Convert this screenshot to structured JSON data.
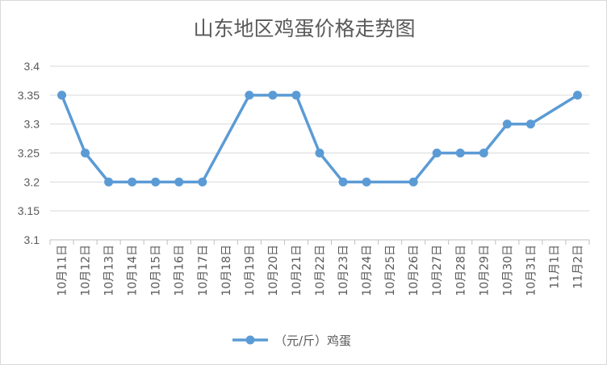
{
  "chart_data": {
    "type": "line",
    "title": "山东地区鸡蛋价格走势图",
    "xlabel": "",
    "ylabel": "",
    "categories": [
      "10月11日",
      "10月12日",
      "10月13日",
      "10月14日",
      "10月15日",
      "10月16日",
      "10月17日",
      "10月18日",
      "10月19日",
      "10月20日",
      "10月21日",
      "10月22日",
      "10月23日",
      "10月24日",
      "10月25日",
      "10月26日",
      "10月27日",
      "10月28日",
      "10月29日",
      "10月30日",
      "10月31日",
      "11月1日",
      "11月2日"
    ],
    "series": [
      {
        "name": "（元/斤）鸡蛋",
        "color": "#5b9bd5",
        "values": [
          3.35,
          3.25,
          3.2,
          3.2,
          3.2,
          3.2,
          3.2,
          null,
          3.35,
          3.35,
          3.35,
          3.25,
          3.2,
          3.2,
          null,
          3.2,
          3.25,
          3.25,
          3.25,
          3.3,
          3.3,
          null,
          3.35
        ]
      }
    ],
    "ylim": [
      3.1,
      3.4
    ],
    "yticks": [
      "3.1",
      "3.15",
      "3.2",
      "3.25",
      "3.3",
      "3.35",
      "3.4"
    ],
    "grid": "horizontal",
    "legend_position": "bottom"
  }
}
